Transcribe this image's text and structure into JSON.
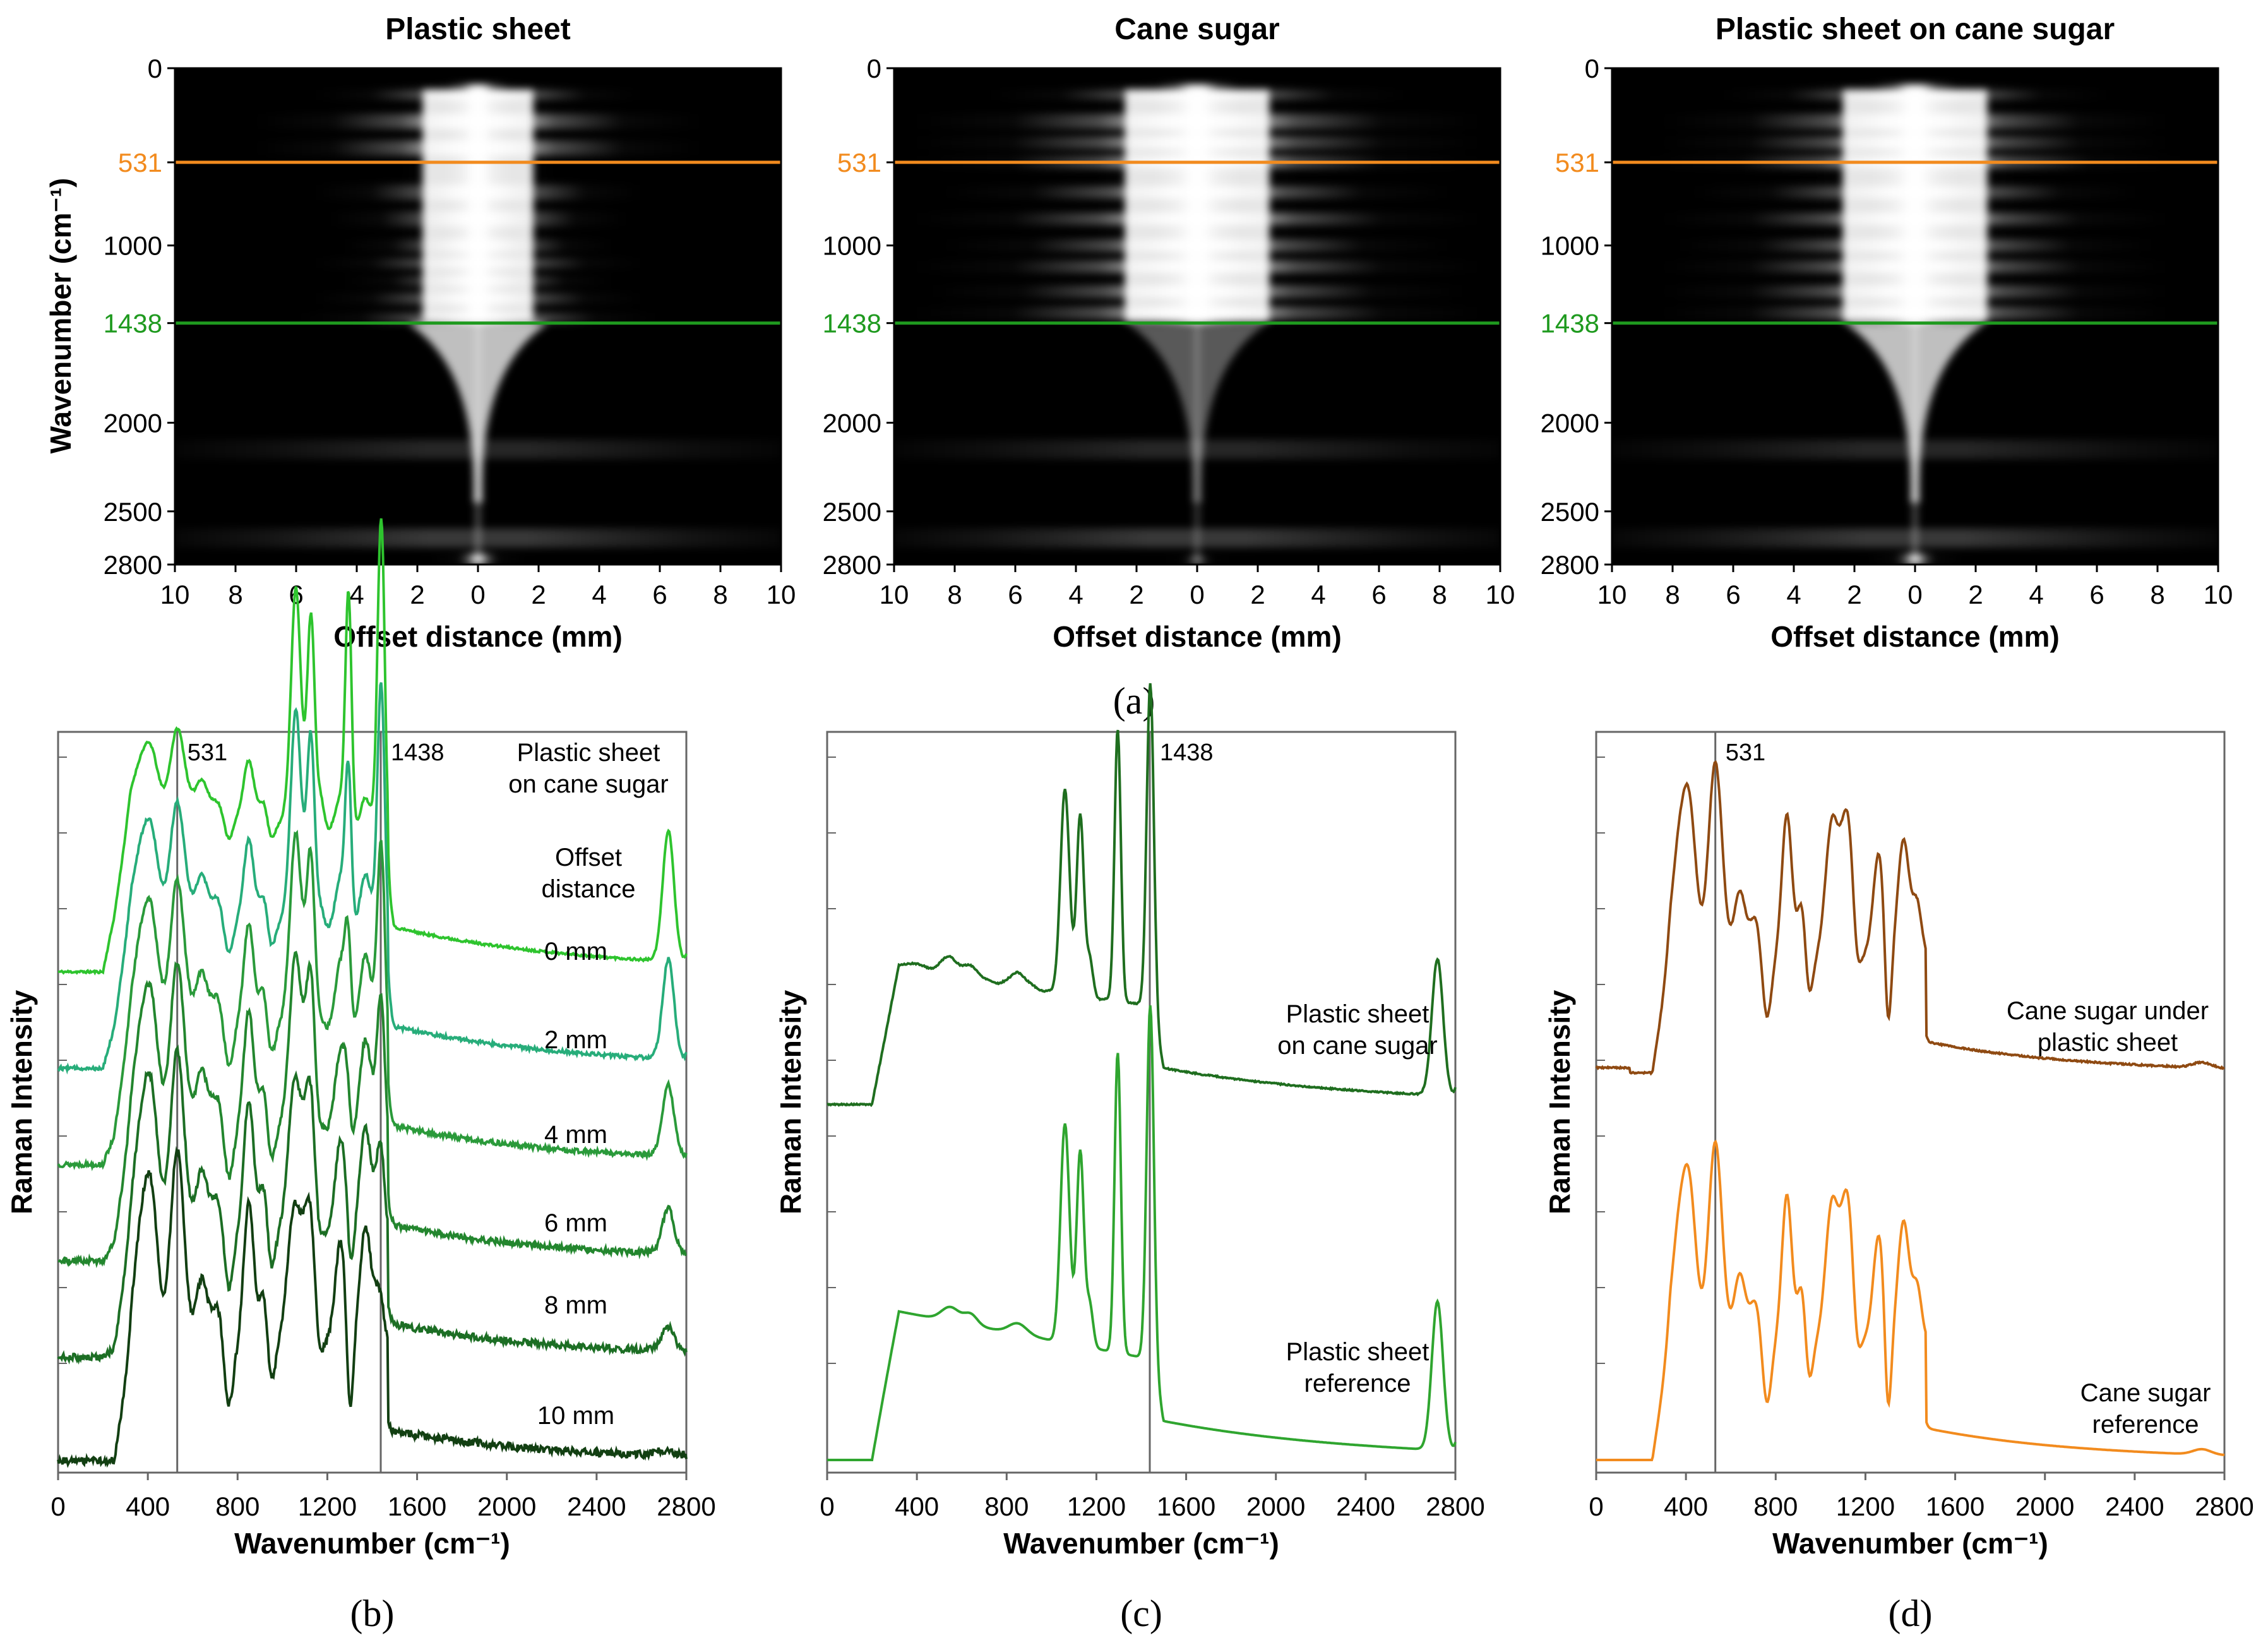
{
  "figure": {
    "heatmap_panel_label": "(a)",
    "heatmaps": [
      {
        "title": "Plastic sheet",
        "variant": "plastic"
      },
      {
        "title": "Cane sugar",
        "variant": "sugar"
      },
      {
        "title": "Plastic sheet on cane sugar",
        "variant": "combined"
      }
    ],
    "heatmap_axes": {
      "xlabel": "Offset distance (mm)",
      "ylabel": "Wavenumber (cm⁻¹)",
      "x_ticks": [
        "10",
        "8",
        "6",
        "4",
        "2",
        "0",
        "2",
        "4",
        "6",
        "8",
        "10"
      ],
      "y_ticks": [
        {
          "value": 0,
          "label": "0"
        },
        {
          "value": 531,
          "label": "531",
          "color": "#f28b1e"
        },
        {
          "value": 1000,
          "label": "1000"
        },
        {
          "value": 1438,
          "label": "1438",
          "color": "#1f9a1f"
        },
        {
          "value": 2000,
          "label": "2000"
        },
        {
          "value": 2500,
          "label": "2500"
        },
        {
          "value": 2800,
          "label": "2800"
        }
      ],
      "marker_lines": [
        {
          "value": 531,
          "color": "#f28b1e"
        },
        {
          "value": 1438,
          "color": "#1f9a1f"
        }
      ]
    }
  },
  "chart_data": [
    {
      "type": "heatmap",
      "title": "Plastic sheet",
      "xlabel": "Offset distance (mm)",
      "ylabel": "Wavenumber (cm⁻¹)",
      "xlim": [
        -10,
        10
      ],
      "ylim": [
        0,
        2800
      ],
      "marker_lines": [
        531,
        1438
      ]
    },
    {
      "type": "heatmap",
      "title": "Cane sugar",
      "xlabel": "Offset distance (mm)",
      "ylabel": "Wavenumber (cm⁻¹)",
      "xlim": [
        -10,
        10
      ],
      "ylim": [
        0,
        2800
      ],
      "marker_lines": [
        531,
        1438
      ]
    },
    {
      "type": "heatmap",
      "title": "Plastic sheet on cane sugar",
      "xlabel": "Offset distance (mm)",
      "ylabel": "Wavenumber (cm⁻¹)",
      "xlim": [
        -10,
        10
      ],
      "ylim": [
        0,
        2800
      ],
      "marker_lines": [
        531,
        1438
      ]
    },
    {
      "type": "line",
      "panel_label": "(b)",
      "xlabel": "Wavenumber (cm⁻¹)",
      "ylabel": "Raman Intensity",
      "xlim": [
        0,
        2800
      ],
      "x_ticks": [
        0,
        400,
        800,
        1200,
        1600,
        2000,
        2400,
        2800
      ],
      "vlines": [
        531,
        1438
      ],
      "vline_labels": [
        "531",
        "1438"
      ],
      "annotations": [
        "Plastic sheet",
        "on cane sugar",
        "Offset",
        "distance"
      ],
      "series": [
        {
          "name": "0 mm",
          "color": "#2ec42e",
          "offset": 0.0
        },
        {
          "name": "2 mm",
          "color": "#27ad7a",
          "offset": 0.13
        },
        {
          "name": "4 mm",
          "color": "#2a9a3a",
          "offset": 0.26
        },
        {
          "name": "6 mm",
          "color": "#23862e",
          "offset": 0.39
        },
        {
          "name": "8 mm",
          "color": "#1c6e24",
          "offset": 0.52
        },
        {
          "name": "10 mm",
          "color": "#123f12",
          "offset": 0.66
        }
      ]
    },
    {
      "type": "line",
      "panel_label": "(c)",
      "xlabel": "Wavenumber (cm⁻¹)",
      "ylabel": "Raman Intensity",
      "xlim": [
        0,
        2800
      ],
      "x_ticks": [
        0,
        400,
        800,
        1200,
        1600,
        2000,
        2400,
        2800
      ],
      "vlines": [
        1438
      ],
      "vline_labels": [
        "1438"
      ],
      "series": [
        {
          "name": "Plastic sheet on cane sugar",
          "color": "#1f6e1f"
        },
        {
          "name": "Plastic sheet reference",
          "color": "#2fa52f"
        }
      ]
    },
    {
      "type": "line",
      "panel_label": "(d)",
      "xlabel": "Wavenumber (cm⁻¹)",
      "ylabel": "Raman Intensity",
      "xlim": [
        0,
        2800
      ],
      "x_ticks": [
        0,
        400,
        800,
        1200,
        1600,
        2000,
        2400,
        2800
      ],
      "vlines": [
        531
      ],
      "vline_labels": [
        "531"
      ],
      "series": [
        {
          "name": "Cane sugar under plastic sheet",
          "color": "#8f4a12"
        },
        {
          "name": "Cane sugar reference",
          "color": "#f28b1e"
        }
      ]
    }
  ],
  "labels": {
    "b_series": [
      "0 mm",
      "2 mm",
      "4 mm",
      "6 mm",
      "8 mm",
      "10 mm"
    ],
    "c_series": [
      [
        "Plastic sheet",
        "on cane sugar"
      ],
      [
        "Plastic sheet",
        "reference"
      ]
    ],
    "d_series": [
      [
        "Cane sugar under",
        "plastic sheet"
      ],
      [
        "Cane sugar",
        "reference"
      ]
    ]
  }
}
